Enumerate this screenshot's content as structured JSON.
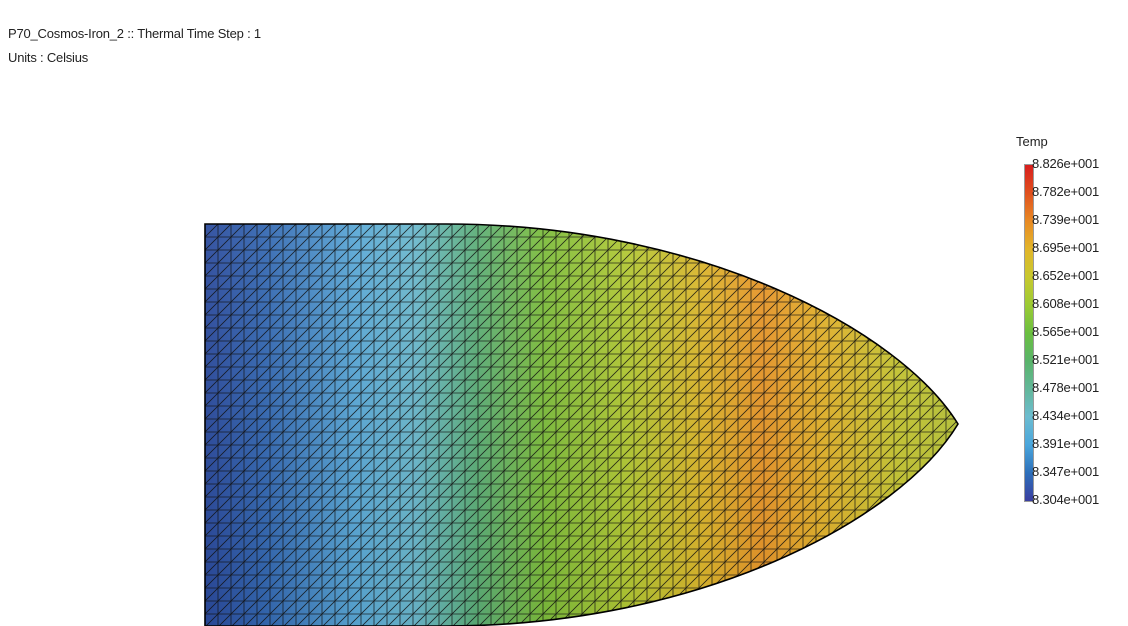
{
  "header": {
    "title": "P70_Cosmos-Iron_2 :: Thermal Time Step : 1",
    "units": "Units : Celsius"
  },
  "legend": {
    "title": "Temp",
    "ticks": [
      "8.826e+001",
      "8.782e+001",
      "8.739e+001",
      "8.695e+001",
      "8.652e+001",
      "8.608e+001",
      "8.565e+001",
      "8.521e+001",
      "8.478e+001",
      "8.434e+001",
      "8.391e+001",
      "8.347e+001",
      "8.304e+001"
    ],
    "colors": [
      "#d81e1e",
      "#e0501e",
      "#e88a24",
      "#e2b52a",
      "#c8c82e",
      "#9ccb34",
      "#6bbf40",
      "#5ab46a",
      "#63b79a",
      "#6cbcd0",
      "#4aa6dc",
      "#2d6fba",
      "#3a3ea0"
    ]
  }
}
